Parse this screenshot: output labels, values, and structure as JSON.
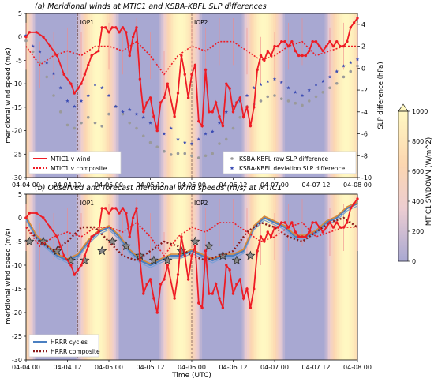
{
  "figure": {
    "xlabel": "Time (UTC)",
    "colorbar_label": "MTIC1 SWDOWN (W/m^2)",
    "colorbar_ticks": [
      0,
      200,
      400,
      600,
      800,
      1000
    ],
    "iop_labels": [
      "IOP1",
      "IOP2"
    ]
  },
  "chart_data": [
    {
      "type": "line",
      "title": "(a) Meridional winds at MTIC1 and KSBA-KBFL SLP differences",
      "ylabel": "meridional wind speed (m/s)",
      "y2label": "SLP difference (hPa)",
      "ylim": [
        -30,
        5
      ],
      "y2lim": [
        -10,
        5
      ],
      "yticks": [
        5,
        0,
        -5,
        -10,
        -15,
        -20,
        -25,
        -30
      ],
      "y2ticks": [
        4,
        2,
        0,
        -2,
        -4,
        -6,
        -8,
        -10
      ],
      "xlim": [
        0,
        96
      ],
      "x_tick_labels": [
        "04-04 00",
        "04-04 12",
        "04-05 00",
        "04-05 12",
        "04-06 00",
        "04-06 12",
        "04-07 00",
        "04-07 12",
        "04-08 00"
      ],
      "legend_left": [
        "MTIC1 v wind",
        "MTIC1 v composite"
      ],
      "legend_right": [
        "KSBA-KBFL raw SLP difference",
        "KSBA-KBFL deviation SLP difference"
      ],
      "series": [
        {
          "name": "MTIC1 v wind",
          "color": "#ee1c25",
          "style": "solid",
          "x": [
            0,
            1,
            3,
            5,
            7,
            9,
            11,
            13,
            14,
            15,
            16,
            17,
            18,
            19,
            21,
            22,
            23,
            24,
            25,
            26,
            27,
            28,
            29,
            30,
            31,
            32,
            33,
            34,
            35,
            36,
            37,
            38,
            39,
            40,
            41,
            43,
            44,
            45,
            46,
            47,
            48,
            49,
            50,
            51,
            52,
            53,
            54,
            55,
            56,
            57,
            58,
            59,
            60,
            61,
            62,
            63,
            64,
            65,
            66,
            67,
            68,
            69,
            70,
            71,
            72,
            73,
            74,
            75,
            76,
            77,
            78,
            79,
            80,
            81,
            82,
            83,
            84,
            85,
            86,
            87,
            88,
            89,
            90,
            91,
            92,
            93,
            94,
            95,
            96
          ],
          "values": [
            0,
            1,
            1,
            0,
            -2,
            -4,
            -8,
            -10,
            -12,
            -11,
            -10,
            -8,
            -6,
            -4,
            -3,
            2,
            2,
            1,
            2,
            2,
            1,
            2,
            1,
            -4,
            0,
            2,
            -9,
            -16,
            -14,
            -13,
            -17,
            -20,
            -14,
            -13,
            -10,
            -17,
            -12,
            -4,
            -8,
            -13,
            -8,
            -6,
            -18,
            -19,
            -7,
            -16,
            -16,
            -14,
            -17,
            -19,
            -10,
            -11,
            -16,
            -14,
            -13,
            -17,
            -15,
            -19,
            -15,
            -7,
            -4,
            -5,
            -3,
            -4,
            -2,
            -2,
            -1,
            -1,
            -2,
            -1,
            -3,
            -4,
            -4,
            -4,
            -3,
            -1,
            -1,
            -2,
            -3,
            -2,
            -1,
            -2,
            -1,
            -2,
            -2,
            -1,
            2,
            3,
            4
          ]
        },
        {
          "name": "MTIC1 v composite",
          "color": "#ee1c25",
          "style": "dotted",
          "x": [
            0,
            4,
            8,
            12,
            16,
            20,
            24,
            28,
            32,
            36,
            40,
            44,
            48,
            52,
            56,
            60,
            64,
            68,
            72,
            76,
            80,
            84,
            88,
            92,
            96
          ],
          "values": [
            -2,
            -6,
            -4,
            -3,
            -4,
            -2,
            -2,
            -3,
            -1,
            -4,
            -8,
            -4,
            -2,
            -3,
            -1,
            -1,
            -3,
            -5,
            -4,
            -2,
            -1,
            -4,
            -3,
            -2,
            -2
          ]
        },
        {
          "name": "KSBA-KBFL raw SLP difference",
          "color": "#9a9a9a",
          "style": "points",
          "axis": "y2",
          "x": [
            0,
            2,
            4,
            6,
            8,
            10,
            12,
            14,
            16,
            18,
            20,
            22,
            24,
            26,
            28,
            30,
            32,
            34,
            36,
            38,
            40,
            42,
            44,
            46,
            48,
            50,
            52,
            54,
            56,
            58,
            60,
            62,
            64,
            66,
            68,
            70,
            72,
            74,
            76,
            78,
            80,
            82,
            84,
            86,
            88,
            90,
            92,
            94,
            96
          ],
          "values": [
            2.5,
            1.5,
            0.5,
            -0.8,
            -2.5,
            -4.0,
            -5.2,
            -5.5,
            -5.0,
            -4.5,
            -5.0,
            -5.3,
            -4.2,
            -3.5,
            -4.2,
            -5.0,
            -5.5,
            -6.2,
            -6.8,
            -7.2,
            -7.6,
            -7.9,
            -7.8,
            -7.8,
            -8.0,
            -8.2,
            -8.0,
            -7.8,
            -6.9,
            -6.5,
            -5.5,
            -4.5,
            -3.5,
            -3.3,
            -3.0,
            -2.6,
            -2.5,
            -2.8,
            -3.0,
            -3.2,
            -3.4,
            -3.0,
            -2.6,
            -2.2,
            -1.8,
            -1.4,
            -0.8,
            -0.3,
            0.2
          ]
        },
        {
          "name": "KSBA-KBFL deviation SLP difference",
          "color": "#3a4bb3",
          "style": "stars",
          "axis": "y2",
          "x": [
            0,
            2,
            4,
            6,
            8,
            10,
            12,
            14,
            16,
            18,
            20,
            22,
            24,
            26,
            28,
            30,
            32,
            34,
            36,
            38,
            40,
            42,
            44,
            46,
            48,
            50,
            52,
            54,
            56,
            58,
            60,
            62,
            64,
            66,
            68,
            70,
            72,
            74,
            76,
            78,
            80,
            82,
            84,
            86,
            88,
            90,
            92,
            94,
            96
          ],
          "values": [
            3.0,
            2.0,
            1.5,
            0.5,
            -0.5,
            -1.8,
            -3.0,
            -3.5,
            -3.0,
            -2.5,
            -1.5,
            -1.8,
            -2.5,
            -3.5,
            -4.0,
            -3.8,
            -4.2,
            -4.5,
            -5.0,
            -5.5,
            -6.0,
            -5.5,
            -6.5,
            -6.8,
            -6.9,
            -6.5,
            -6.0,
            -5.8,
            -5.0,
            -4.0,
            -3.5,
            -3.0,
            -2.5,
            -1.8,
            -1.5,
            -1.2,
            -1.0,
            -1.3,
            -1.8,
            -2.2,
            -2.5,
            -2.0,
            -1.5,
            -1.2,
            -0.8,
            -0.3,
            0.2,
            0.5,
            0.8
          ]
        }
      ]
    },
    {
      "type": "line",
      "title": "(b) Observed and forecast meridional wind speeds (m/s) at MTIC1",
      "ylabel": "meridional wind speed (m/s)",
      "ylim": [
        -30,
        5
      ],
      "yticks": [
        5,
        0,
        -5,
        -10,
        -15,
        -20,
        -25,
        -30
      ],
      "xlim": [
        0,
        96
      ],
      "x_tick_labels": [
        "04-04 00",
        "04-04 12",
        "04-05 00",
        "04-05 12",
        "04-06 00",
        "04-06 12",
        "04-07 00",
        "04-07 12",
        "04-08 00"
      ],
      "legend": [
        "HRRR cycles",
        "HRRR composite"
      ],
      "series": [
        {
          "name": "HRRR cycles",
          "color": "#4a7fc1",
          "style": "solid",
          "x": [
            0,
            3,
            6,
            9,
            12,
            15,
            18,
            21,
            24,
            27,
            30,
            33,
            36,
            39,
            42,
            45,
            48,
            51,
            54,
            57,
            60,
            63,
            66,
            69,
            72,
            75,
            78,
            81,
            84,
            87,
            90,
            93,
            96
          ],
          "values": [
            0,
            -4,
            -6,
            -8,
            -9,
            -8,
            -5,
            -3,
            -2,
            -4,
            -7,
            -9,
            -10,
            -9,
            -8,
            -8,
            -7,
            -8,
            -9,
            -8,
            -8,
            -7,
            -2,
            0,
            -1,
            -2,
            -4,
            -4,
            -3,
            -1,
            0,
            2,
            3
          ]
        },
        {
          "name": "HRRR composite",
          "color": "#8b1a1a",
          "style": "dotted",
          "x": [
            0,
            4,
            8,
            12,
            16,
            20,
            24,
            28,
            32,
            36,
            40,
            44,
            48,
            52,
            56,
            60,
            64,
            68,
            72,
            76,
            80,
            84,
            88,
            92,
            96
          ],
          "values": [
            -2,
            -5,
            -7,
            -5,
            -2,
            -2,
            -5,
            -8,
            -9,
            -7,
            -5,
            -6,
            -8,
            -9,
            -8,
            -7,
            -3,
            -1,
            -2,
            -4,
            -5,
            -3,
            -1,
            0,
            -2
          ]
        },
        {
          "name": "MTIC1 v wind",
          "color": "#ee1c25",
          "style": "solid",
          "x": [
            0,
            1,
            3,
            5,
            7,
            9,
            11,
            13,
            14,
            15,
            16,
            17,
            18,
            19,
            21,
            22,
            23,
            24,
            25,
            26,
            27,
            28,
            29,
            30,
            31,
            32,
            33,
            34,
            35,
            36,
            37,
            38,
            39,
            40,
            41,
            43,
            44,
            45,
            46,
            47,
            48,
            49,
            50,
            51,
            52,
            53,
            54,
            55,
            56,
            57,
            58,
            59,
            60,
            61,
            62,
            63,
            64,
            65,
            66,
            67,
            68,
            69,
            70,
            71,
            72,
            73,
            74,
            75,
            76,
            77,
            78,
            79,
            80,
            81,
            82,
            83,
            84,
            85,
            86,
            87,
            88,
            89,
            90,
            91,
            92,
            93,
            94,
            95,
            96
          ],
          "values": [
            0,
            1,
            1,
            0,
            -2,
            -4,
            -8,
            -10,
            -12,
            -11,
            -10,
            -8,
            -6,
            -4,
            -3,
            2,
            2,
            1,
            2,
            2,
            1,
            2,
            1,
            -4,
            0,
            2,
            -9,
            -16,
            -14,
            -13,
            -17,
            -20,
            -14,
            -13,
            -10,
            -17,
            -12,
            -4,
            -8,
            -13,
            -8,
            -6,
            -18,
            -19,
            -7,
            -16,
            -16,
            -14,
            -17,
            -19,
            -10,
            -11,
            -16,
            -14,
            -13,
            -17,
            -15,
            -19,
            -15,
            -7,
            -4,
            -5,
            -3,
            -4,
            -2,
            -2,
            -1,
            -1,
            -2,
            -1,
            -3,
            -4,
            -4,
            -4,
            -3,
            -1,
            -1,
            -2,
            -3,
            -2,
            -1,
            -2,
            -1,
            -2,
            -2,
            -1,
            2,
            3,
            4
          ]
        },
        {
          "name": "MTIC1 v composite",
          "color": "#ee1c25",
          "style": "dotted",
          "x": [
            0,
            4,
            8,
            12,
            16,
            20,
            24,
            28,
            32,
            36,
            40,
            44,
            48,
            52,
            56,
            60,
            64,
            68,
            72,
            76,
            80,
            84,
            88,
            92,
            96
          ],
          "values": [
            -2,
            -6,
            -4,
            -3,
            -4,
            -2,
            -2,
            -3,
            -1,
            -4,
            -8,
            -4,
            -2,
            -3,
            -1,
            -1,
            -3,
            -5,
            -4,
            -2,
            -1,
            -4,
            -3,
            -2,
            -2
          ]
        }
      ],
      "star_markers": {
        "x": [
          1,
          5,
          9,
          13,
          17,
          22,
          25,
          29,
          33,
          37,
          41,
          45,
          49,
          53,
          57,
          61,
          65
        ],
        "values": [
          -5,
          -5,
          -7,
          -9,
          -9,
          -7,
          -5,
          -6,
          -8,
          -9,
          -9,
          -7,
          -5,
          -6,
          -8,
          -9,
          -8
        ]
      }
    }
  ]
}
